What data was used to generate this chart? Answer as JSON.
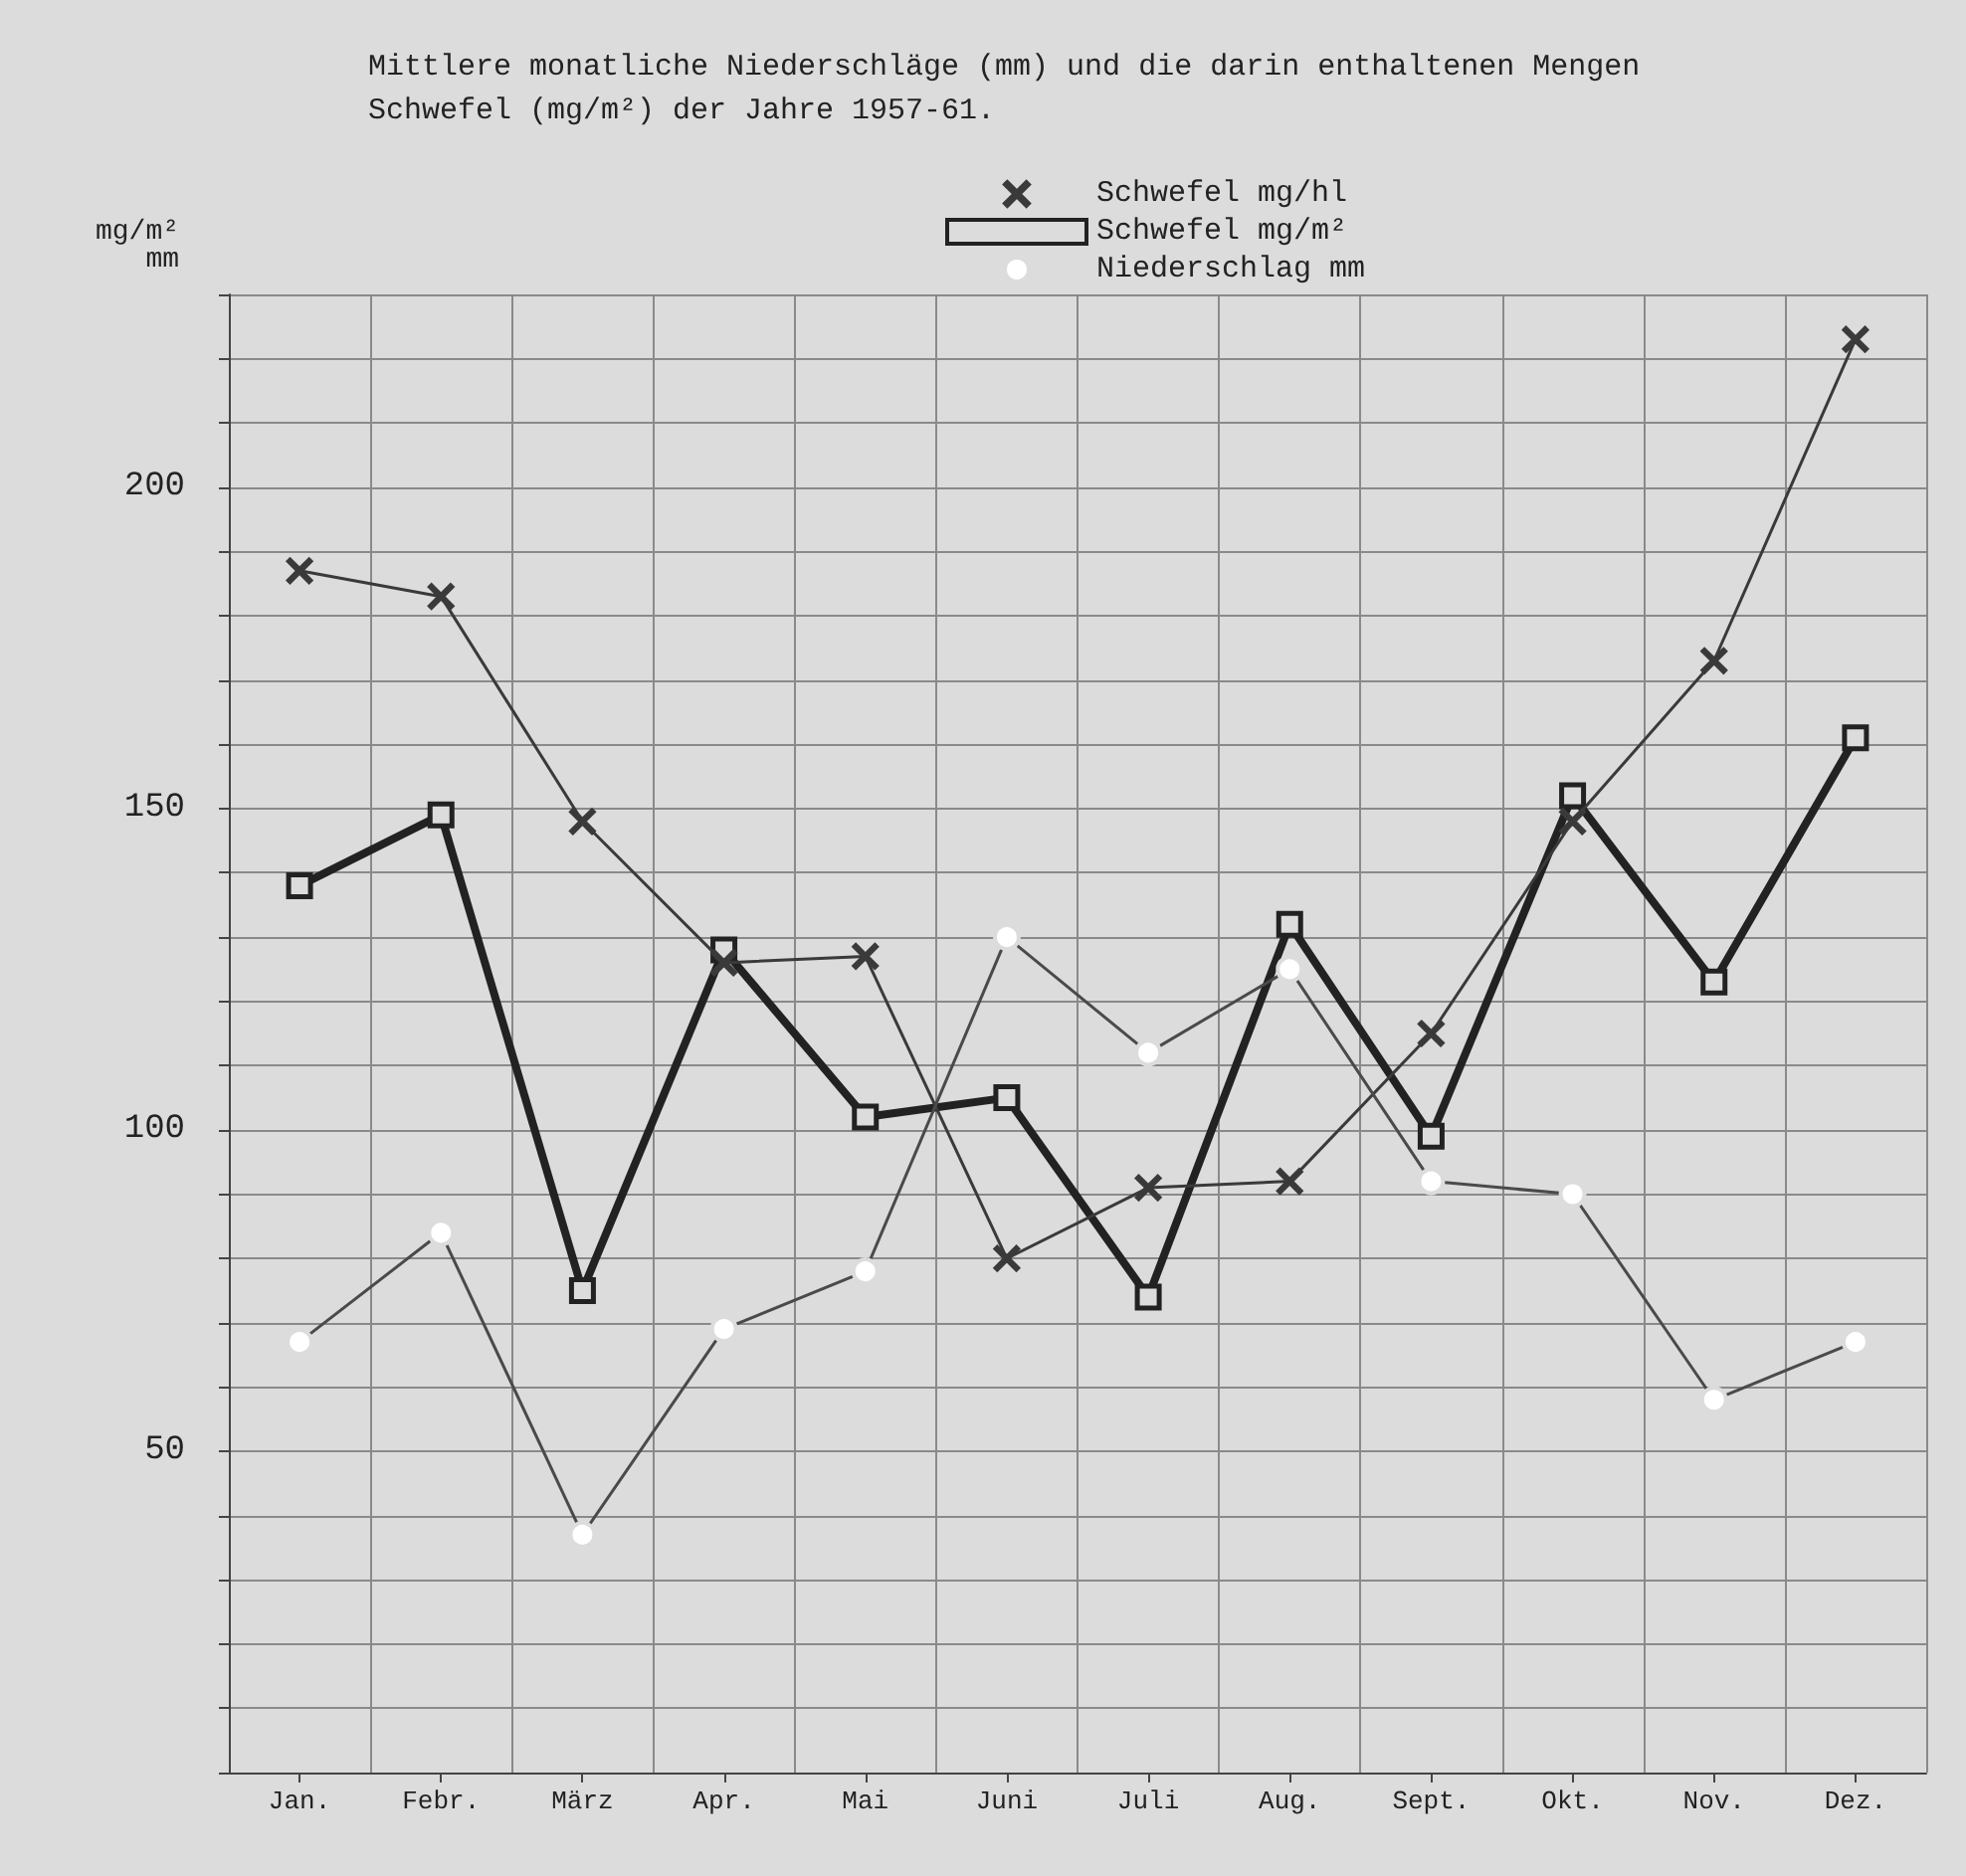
{
  "chart_data": {
    "type": "line",
    "title": "Mittlere monatliche Niederschläge (mm) und die darin enthaltenen Mengen Schwefel (mg/m²) der Jahre 1957-61.",
    "ylabel": "mg/m²\nmm",
    "categories": [
      "Jan.",
      "Febr.",
      "März",
      "Apr.",
      "Mai",
      "Juni",
      "Juli",
      "Aug.",
      "Sept.",
      "Okt.",
      "Nov.",
      "Dez."
    ],
    "series": [
      {
        "name": "Schwefel mg/hl",
        "color": "#3a3a3a",
        "marker": "cross",
        "values": [
          187,
          183,
          148,
          126,
          127,
          80,
          91,
          92,
          115,
          148,
          173,
          223
        ]
      },
      {
        "name": "Schwefel mg/m²",
        "color": "#222222",
        "marker": "square",
        "values": [
          138,
          149,
          75,
          128,
          102,
          105,
          74,
          132,
          99,
          152,
          123,
          161
        ]
      },
      {
        "name": "Niederschlag mm",
        "color": "#4a4a4a",
        "marker": "circle",
        "values": [
          67,
          84,
          37,
          69,
          78,
          130,
          112,
          125,
          92,
          90,
          58,
          67
        ]
      }
    ],
    "ylim": [
      0,
      230
    ],
    "yticks": [
      {
        "value": 0,
        "label": null
      },
      {
        "value": 10,
        "label": null
      },
      {
        "value": 20,
        "label": null
      },
      {
        "value": 30,
        "label": null
      },
      {
        "value": 40,
        "label": null
      },
      50,
      {
        "value": 60,
        "label": null
      },
      {
        "value": 70,
        "label": null
      },
      {
        "value": 80,
        "label": null
      },
      {
        "value": 90,
        "label": null
      },
      100,
      {
        "value": 110,
        "label": null
      },
      {
        "value": 120,
        "label": null
      },
      {
        "value": 130,
        "label": null
      },
      {
        "value": 140,
        "label": null
      },
      150,
      {
        "value": 160,
        "label": null
      },
      {
        "value": 170,
        "label": null
      },
      {
        "value": 180,
        "label": null
      },
      {
        "value": 190,
        "label": null
      },
      200,
      {
        "value": 210,
        "label": null
      },
      {
        "value": 220,
        "label": null
      },
      {
        "value": 230,
        "label": null
      }
    ],
    "grid": true,
    "legend": "top",
    "line_style": "solid"
  }
}
